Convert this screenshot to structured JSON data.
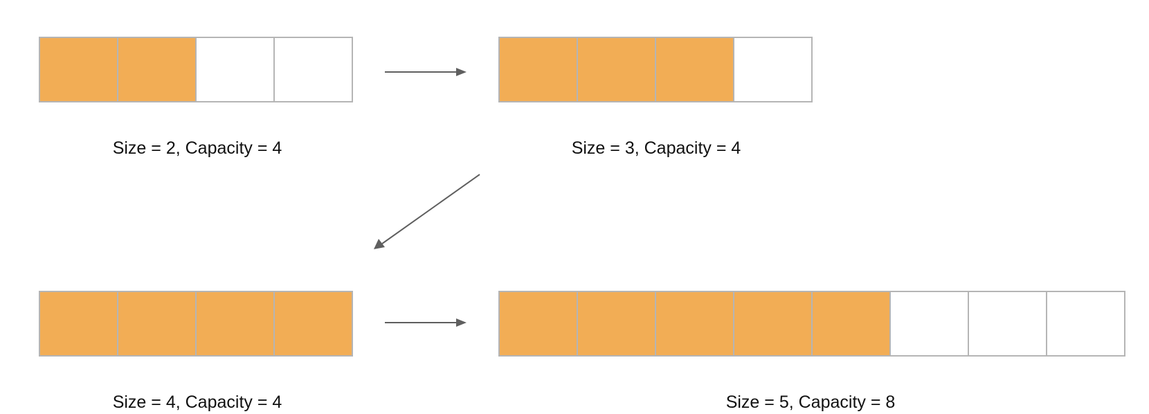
{
  "colors": {
    "filled": "#f2ad55",
    "empty": "#ffffff",
    "border": "#b5b5b5",
    "arrow": "#5f5f5f",
    "text": "#111111"
  },
  "arrays": [
    {
      "id": "state-1",
      "size": 2,
      "capacity": 4,
      "caption": "Size = 2, Capacity = 4"
    },
    {
      "id": "state-2",
      "size": 3,
      "capacity": 4,
      "caption": "Size = 3, Capacity = 4"
    },
    {
      "id": "state-3",
      "size": 4,
      "capacity": 4,
      "caption": "Size = 4, Capacity = 4"
    },
    {
      "id": "state-4",
      "size": 5,
      "capacity": 8,
      "caption": "Size = 5, Capacity = 8"
    }
  ],
  "arrows": [
    {
      "from": "state-1",
      "to": "state-2"
    },
    {
      "from": "state-2",
      "to": "state-3"
    },
    {
      "from": "state-3",
      "to": "state-4"
    }
  ]
}
